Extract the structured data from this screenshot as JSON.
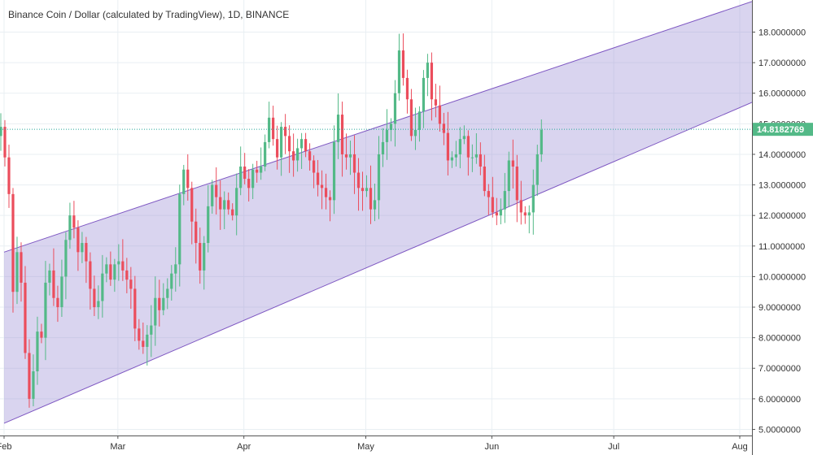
{
  "chart_data": {
    "type": "candlestick",
    "title": "Binance Coin / Dollar (calculated by TradingView), 1D, BINANCE",
    "y_ticks": [
      5,
      6,
      7,
      8,
      9,
      10,
      11,
      12,
      13,
      14,
      15,
      16,
      17,
      18
    ],
    "y_tick_labels": [
      "5.0000000",
      "6.0000000",
      "7.0000000",
      "8.0000000",
      "9.0000000",
      "10.0000000",
      "11.0000000",
      "12.0000000",
      "13.0000000",
      "14.0000000",
      "15.0000000",
      "16.0000000",
      "17.0000000",
      "18.0000000"
    ],
    "ylim": [
      4.8,
      19.05
    ],
    "x_start": "2019-01-31",
    "x_end": "2019-08-04",
    "x_ticks": [
      {
        "label": "Feb",
        "date": "2019-02-01"
      },
      {
        "label": "Mar",
        "date": "2019-03-01"
      },
      {
        "label": "Apr",
        "date": "2019-04-01"
      },
      {
        "label": "May",
        "date": "2019-05-01"
      },
      {
        "label": "Jun",
        "date": "2019-06-01"
      },
      {
        "label": "Jul",
        "date": "2019-07-01"
      },
      {
        "label": "Aug",
        "date": "2019-08-01"
      }
    ],
    "last_price": 14.8182769,
    "last_price_label": "14.8182769",
    "channel": {
      "upper": [
        {
          "date": "2019-02-01",
          "value": 10.8
        },
        {
          "date": "2019-08-04",
          "value": 19.0
        }
      ],
      "lower": [
        {
          "date": "2019-02-01",
          "value": 5.2
        },
        {
          "date": "2019-08-04",
          "value": 15.7
        }
      ]
    },
    "colors": {
      "up": "#53b987",
      "down": "#eb4d5c",
      "channel_fill": "#9c8fd4",
      "channel_line": "#7e57c2",
      "price_line": "#26a69a",
      "grid": "#e9eff3"
    },
    "grid": true,
    "closes": [
      14.9,
      13.9,
      12.7,
      9.5,
      10.8,
      9.8,
      7.5,
      6.0,
      6.9,
      8.2,
      8.0,
      9.8,
      10.2,
      9.3,
      9.0,
      10.0,
      11.2,
      12.0,
      11.6,
      10.8,
      11.1,
      10.5,
      9.6,
      9.0,
      9.2,
      10.1,
      10.4,
      9.9,
      10.4,
      10.5,
      10.2,
      9.9,
      9.6,
      8.3,
      7.9,
      7.7,
      8.1,
      8.4,
      9.3,
      8.9,
      9.3,
      9.6,
      10.1,
      10.4,
      12.7,
      13.5,
      12.9,
      11.8,
      11.1,
      10.2,
      11.1,
      12.3,
      13.0,
      12.6,
      12.2,
      12.5,
      12.2,
      12.0,
      12.9,
      13.6,
      13.2,
      12.9,
      13.5,
      13.4,
      13.6,
      14.4,
      15.2,
      14.5,
      13.9,
      14.9,
      14.6,
      14.1,
      13.8,
      14.2,
      14.5,
      14.1,
      13.8,
      13.4,
      13.0,
      12.9,
      12.6,
      12.5,
      14.4,
      15.3,
      14.0,
      13.9,
      14.0,
      13.4,
      12.9,
      12.8,
      12.9,
      12.2,
      12.5,
      14.0,
      14.4,
      14.8,
      15.0,
      16.0,
      17.4,
      16.5,
      15.8,
      14.6,
      14.8,
      15.4,
      16.5,
      17.0,
      15.8,
      15.6,
      15.0,
      14.7,
      13.8,
      13.9,
      14.0,
      14.5,
      14.6,
      13.9,
      13.9,
      14.0,
      13.6,
      12.8,
      12.6,
      12.1,
      12.0,
      12.2,
      12.8,
      13.8,
      13.6,
      12.5,
      12.1,
      12.0,
      12.1,
      13.0,
      14.0,
      14.8
    ]
  }
}
